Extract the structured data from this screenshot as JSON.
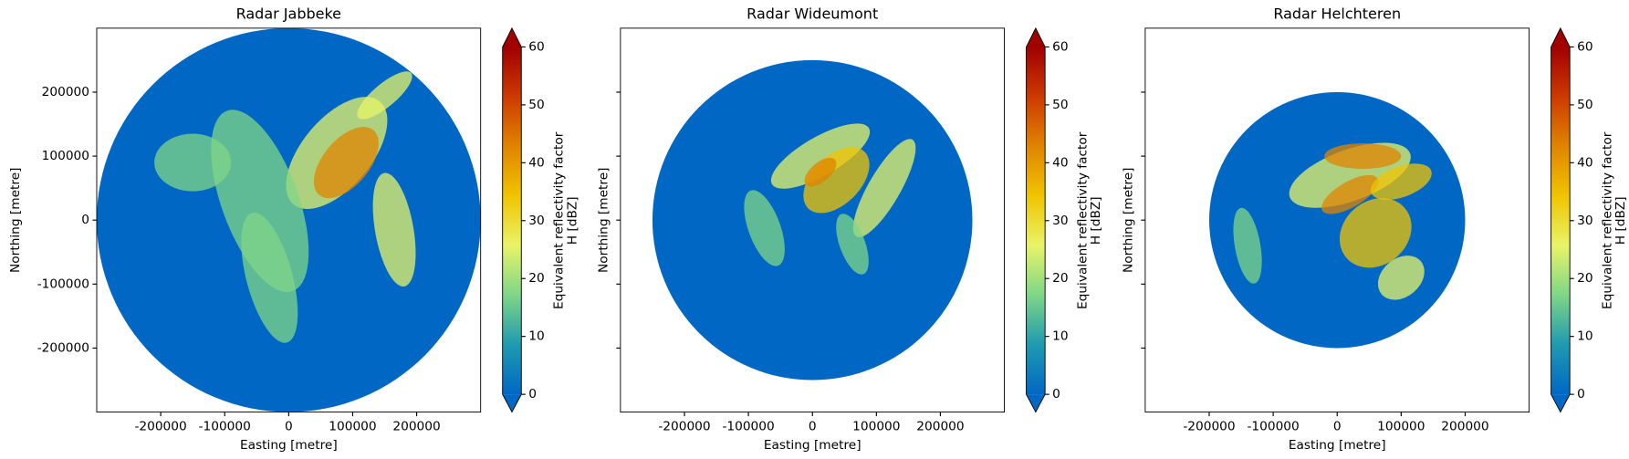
{
  "chart_data": [
    {
      "type": "radar",
      "title": "Radar Jabbeke",
      "xlabel": "Easting [metre]",
      "ylabel": "Northing [metre]",
      "xlim": [
        -300000,
        300000
      ],
      "ylim": [
        -300000,
        300000
      ],
      "xticks": [
        -200000,
        -100000,
        0,
        100000,
        200000
      ],
      "yticks": [
        -200000,
        -100000,
        0,
        100000,
        200000
      ],
      "show_ytick_labels": true,
      "radar_range": 300000,
      "colorbar_label": [
        "Equivalent reflectivity factor",
        "H [dBZ]"
      ],
      "colorbar_lim": [
        0,
        60
      ],
      "colorbar_ticks": [
        0,
        10,
        20,
        30,
        40,
        50,
        60
      ],
      "colormap": [
        "#0068c4",
        "#1f9ab0",
        "#7fd687",
        "#e8f468",
        "#f0c400",
        "#e08400",
        "#cc3a00",
        "#a00000"
      ]
    },
    {
      "type": "radar",
      "title": "Radar Wideumont",
      "xlabel": "Easting [metre]",
      "ylabel": "Northing [metre]",
      "xlim": [
        -300000,
        300000
      ],
      "ylim": [
        -300000,
        300000
      ],
      "xticks": [
        -200000,
        -100000,
        0,
        100000,
        200000
      ],
      "yticks": [
        -200000,
        -100000,
        0,
        100000,
        200000
      ],
      "show_ytick_labels": false,
      "radar_range": 250000,
      "colorbar_label": [
        "Equivalent reflectivity factor",
        "H [dBZ]"
      ],
      "colorbar_lim": [
        0,
        60
      ],
      "colorbar_ticks": [
        0,
        10,
        20,
        30,
        40,
        50,
        60
      ],
      "colormap": [
        "#0068c4",
        "#1f9ab0",
        "#7fd687",
        "#e8f468",
        "#f0c400",
        "#e08400",
        "#cc3a00",
        "#a00000"
      ]
    },
    {
      "type": "radar",
      "title": "Radar Helchteren",
      "xlabel": "Easting [metre]",
      "ylabel": "Northing [metre]",
      "xlim": [
        -300000,
        300000
      ],
      "ylim": [
        -300000,
        300000
      ],
      "xticks": [
        -200000,
        -100000,
        0,
        100000,
        200000
      ],
      "yticks": [
        -200000,
        -100000,
        0,
        100000,
        200000
      ],
      "show_ytick_labels": false,
      "radar_range": 200000,
      "colorbar_label": [
        "Equivalent reflectivity factor",
        "H [dBZ]"
      ],
      "colorbar_lim": [
        0,
        60
      ],
      "colorbar_ticks": [
        0,
        10,
        20,
        30,
        40,
        50,
        60
      ],
      "colormap": [
        "#0068c4",
        "#1f9ab0",
        "#7fd687",
        "#e8f468",
        "#f0c400",
        "#e08400",
        "#cc3a00",
        "#a00000"
      ]
    }
  ]
}
